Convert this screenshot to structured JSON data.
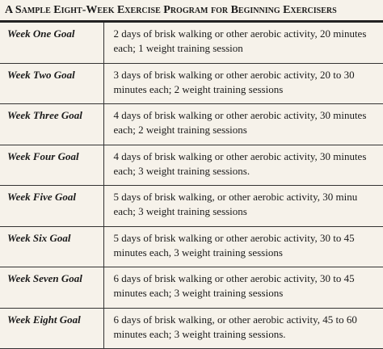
{
  "header": {
    "title": "A Sample Eight-Week Exercise Program for Beginning Exercisers"
  },
  "table": {
    "rows": [
      [
        "Week One Goal",
        [
          "2 days of brisk walking or other aerobic activity, 20 minutes",
          "each; 1 weight training session"
        ]
      ],
      [
        "Week Two Goal",
        [
          "3 days of brisk walking or other aerobic activity, 20 to 30",
          "minutes each; 2 weight training sessions"
        ]
      ],
      [
        "Week Three Goal",
        [
          "4 days of brisk walking or other aerobic activity, 30 minutes",
          "each; 2 weight training sessions"
        ]
      ],
      [
        "Week Four Goal",
        [
          "4 days of brisk walking or other aerobic activity, 30 minutes",
          "each; 3 weight training sessions."
        ]
      ],
      [
        "Week Five Goal",
        [
          "5 days of brisk walking, or other aerobic activity, 30 minu",
          "each; 3 weight training sessions"
        ]
      ],
      [
        "Week Six Goal",
        [
          "5 days of brisk walking or other aerobic activity, 30 to 45",
          "minutes each, 3 weight training sessions"
        ]
      ],
      [
        "Week Seven Goal",
        [
          "6 days of brisk walking or other aerobic activity, 30 to 45",
          "minutes each; 3 weight training sessions"
        ]
      ],
      [
        "Week Eight Goal",
        [
          "6 days of brisk walking, or other aerobic activity, 45 to 60",
          "minutes each; 3 weight training sessions."
        ]
      ]
    ]
  }
}
